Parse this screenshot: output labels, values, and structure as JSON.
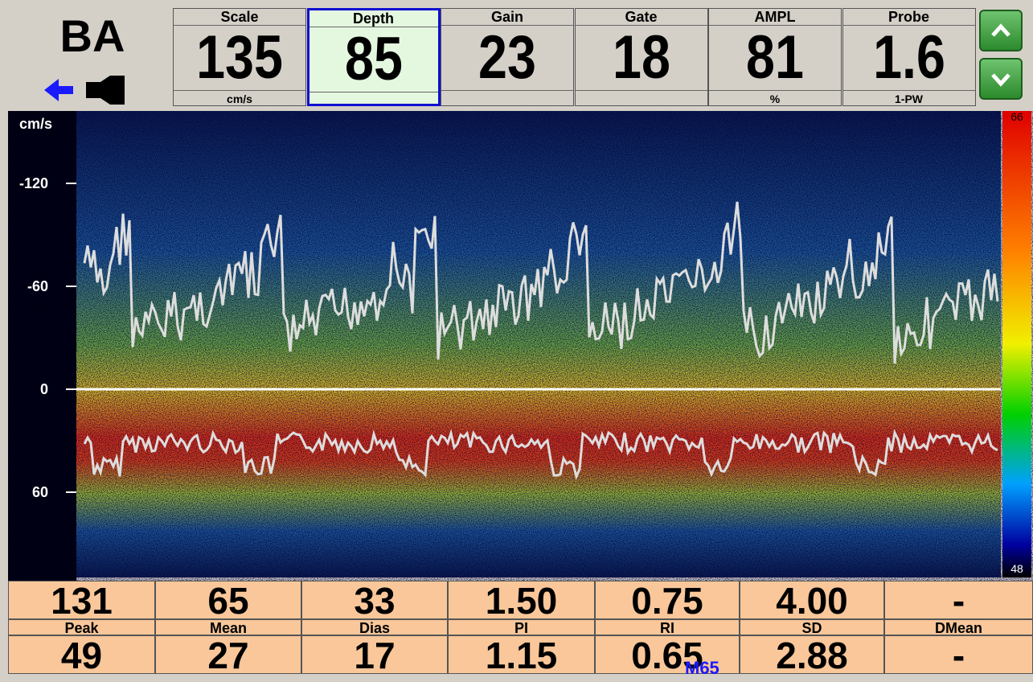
{
  "header": {
    "vessel": "BA"
  },
  "controls": [
    {
      "label": "Scale",
      "value": "135",
      "unit": "cm/s"
    },
    {
      "label": "Depth",
      "value": "85"
    },
    {
      "label": "Gain",
      "value": "23"
    },
    {
      "label": "Gate",
      "value": "18"
    },
    {
      "label": "AMPL",
      "value": "81",
      "unit": "%"
    },
    {
      "label": "Probe",
      "value": "1.6",
      "unit": "1-PW"
    }
  ],
  "spectrum": {
    "axis_unit": "cm/s",
    "velocity_ticks": [
      -120,
      -60,
      0,
      60
    ],
    "color_scale": {
      "top": "66",
      "bottom": "48"
    }
  },
  "measurements": {
    "row1": [
      "131",
      "65",
      "33",
      "1.50",
      "0.75",
      "4.00",
      "-"
    ],
    "labels": [
      "Peak",
      "Mean",
      "Dias",
      "PI",
      "RI",
      "SD",
      "DMean"
    ],
    "row2": [
      "49",
      "27",
      "17",
      "1.15",
      "0.65",
      "2.88",
      "-"
    ]
  },
  "overlay": "M65"
}
